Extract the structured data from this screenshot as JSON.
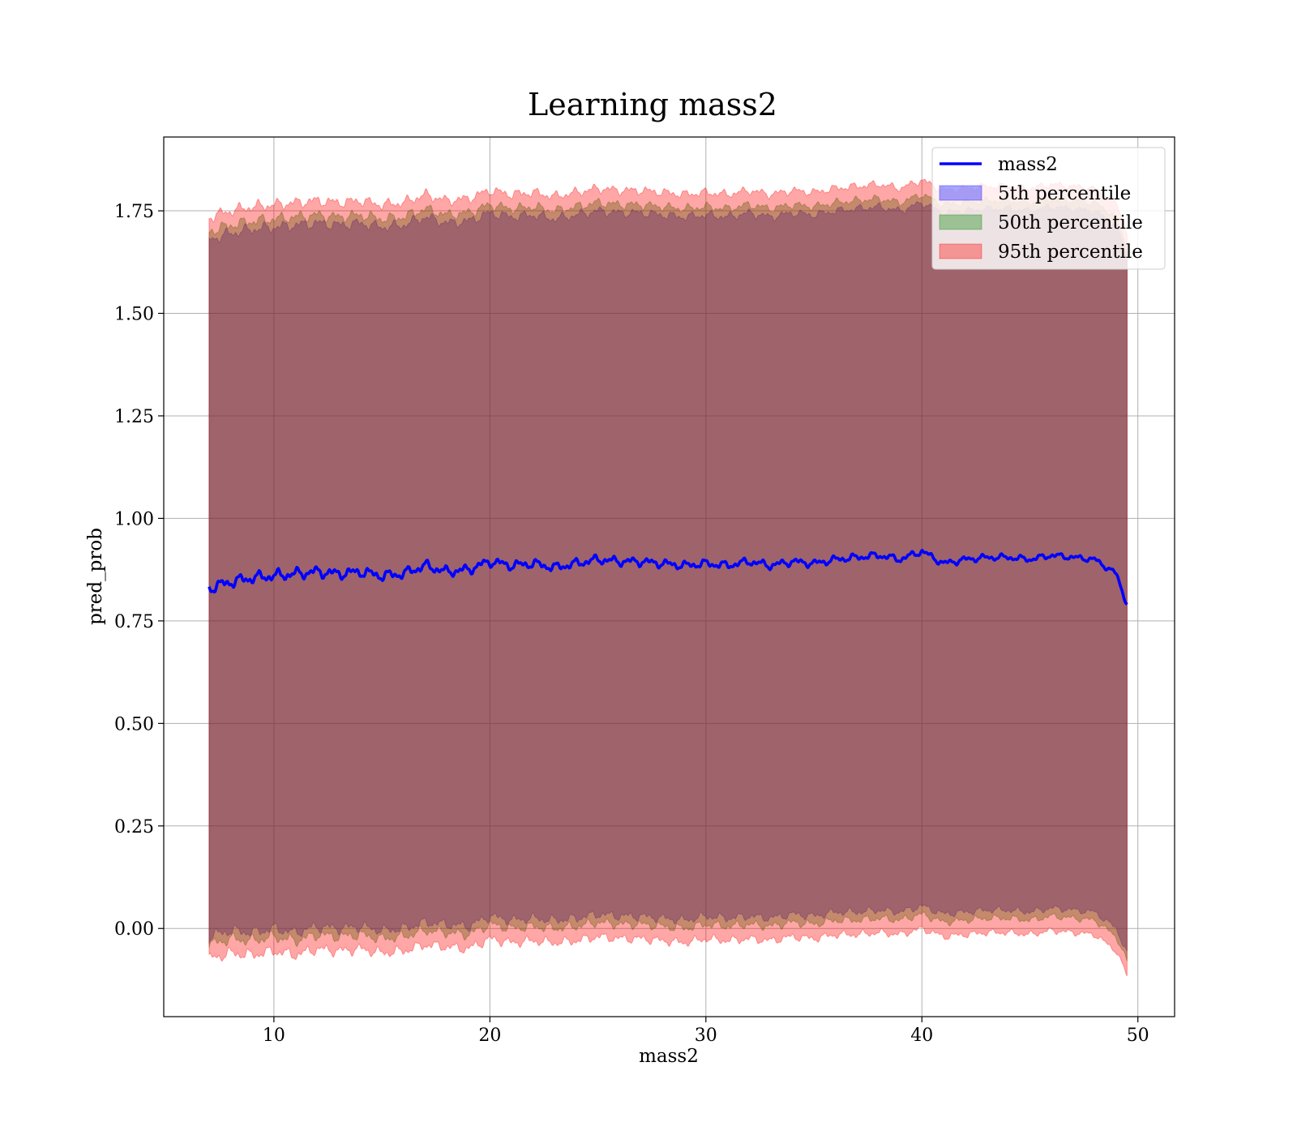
{
  "chart_data": {
    "type": "line",
    "title": "Learning mass2",
    "xlabel": "mass2",
    "ylabel": "pred_prob",
    "xlim": [
      4.9,
      51.7
    ],
    "ylim": [
      -0.215,
      1.93
    ],
    "x_ticks": [
      10,
      20,
      30,
      40,
      50
    ],
    "x_tick_labels": [
      "10",
      "20",
      "30",
      "40",
      "50"
    ],
    "y_ticks": [
      0.0,
      0.25,
      0.5,
      0.75,
      1.0,
      1.25,
      1.5,
      1.75
    ],
    "y_tick_labels": [
      "0.00",
      "0.25",
      "0.50",
      "0.75",
      "1.00",
      "1.25",
      "1.50",
      "1.75"
    ],
    "grid": true,
    "legend_position": "top-right",
    "legend": [
      {
        "label": "mass2",
        "kind": "line",
        "color": "#0000ff"
      },
      {
        "label": "5th percentile",
        "kind": "patch",
        "color": "#0000ff"
      },
      {
        "label": "50th percentile",
        "kind": "patch",
        "color": "#008000"
      },
      {
        "label": "95th percentile",
        "kind": "patch",
        "color": "#ff0000"
      }
    ],
    "x": [
      7.0,
      8.0,
      9.0,
      10.0,
      11.0,
      12.0,
      13.0,
      14.0,
      15.0,
      16.0,
      17.0,
      18.0,
      19.0,
      20.0,
      21.0,
      22.0,
      23.0,
      24.0,
      25.0,
      26.0,
      27.0,
      28.0,
      29.0,
      30.0,
      31.0,
      32.0,
      33.0,
      34.0,
      35.0,
      36.0,
      37.0,
      38.0,
      39.0,
      40.0,
      41.0,
      42.0,
      43.0,
      44.0,
      45.0,
      46.0,
      47.0,
      48.0,
      49.0,
      49.5
    ],
    "series": [
      {
        "name": "mass2",
        "kind": "line",
        "color": "#0000ff",
        "values": [
          0.83,
          0.845,
          0.855,
          0.86,
          0.865,
          0.87,
          0.865,
          0.87,
          0.86,
          0.865,
          0.885,
          0.87,
          0.875,
          0.895,
          0.885,
          0.89,
          0.88,
          0.89,
          0.9,
          0.895,
          0.895,
          0.89,
          0.885,
          0.89,
          0.885,
          0.895,
          0.885,
          0.895,
          0.89,
          0.9,
          0.905,
          0.91,
          0.9,
          0.92,
          0.89,
          0.9,
          0.905,
          0.905,
          0.9,
          0.91,
          0.905,
          0.9,
          0.865,
          0.79
        ]
      },
      {
        "name": "5th percentile",
        "kind": "band",
        "color": "#0000ff",
        "lower": [
          -0.02,
          -0.005,
          -0.01,
          0.0,
          -0.01,
          0.005,
          0.0,
          0.005,
          -0.005,
          0.0,
          0.015,
          0.01,
          0.005,
          0.03,
          0.02,
          0.025,
          0.02,
          0.025,
          0.035,
          0.03,
          0.03,
          0.025,
          0.02,
          0.03,
          0.025,
          0.03,
          0.025,
          0.035,
          0.03,
          0.04,
          0.04,
          0.045,
          0.04,
          0.055,
          0.035,
          0.04,
          0.045,
          0.045,
          0.04,
          0.05,
          0.045,
          0.04,
          0.0,
          -0.06
        ],
        "upper": [
          1.68,
          1.695,
          1.705,
          1.71,
          1.715,
          1.72,
          1.715,
          1.72,
          1.71,
          1.715,
          1.735,
          1.72,
          1.725,
          1.745,
          1.735,
          1.74,
          1.73,
          1.74,
          1.75,
          1.745,
          1.745,
          1.74,
          1.735,
          1.74,
          1.735,
          1.745,
          1.735,
          1.745,
          1.74,
          1.75,
          1.755,
          1.76,
          1.75,
          1.77,
          1.745,
          1.75,
          1.755,
          1.755,
          1.75,
          1.76,
          1.755,
          1.75,
          1.715,
          1.64
        ]
      },
      {
        "name": "50th percentile",
        "kind": "band",
        "color": "#008000",
        "lower": [
          -0.04,
          -0.025,
          -0.03,
          -0.02,
          -0.03,
          -0.015,
          -0.02,
          -0.015,
          -0.025,
          -0.02,
          -0.005,
          -0.01,
          -0.015,
          0.01,
          0.0,
          0.005,
          0.0,
          0.005,
          0.015,
          0.01,
          0.01,
          0.005,
          0.0,
          0.01,
          0.005,
          0.01,
          0.005,
          0.015,
          0.01,
          0.02,
          0.02,
          0.025,
          0.02,
          0.035,
          0.015,
          0.02,
          0.025,
          0.025,
          0.02,
          0.03,
          0.025,
          0.02,
          -0.02,
          -0.08
        ],
        "upper": [
          1.7,
          1.715,
          1.725,
          1.73,
          1.735,
          1.74,
          1.735,
          1.74,
          1.73,
          1.735,
          1.755,
          1.74,
          1.745,
          1.765,
          1.755,
          1.76,
          1.75,
          1.76,
          1.77,
          1.765,
          1.765,
          1.76,
          1.755,
          1.76,
          1.755,
          1.765,
          1.755,
          1.765,
          1.76,
          1.77,
          1.775,
          1.78,
          1.77,
          1.79,
          1.765,
          1.77,
          1.775,
          1.775,
          1.77,
          1.78,
          1.775,
          1.77,
          1.735,
          1.66
        ]
      },
      {
        "name": "95th percentile",
        "kind": "band",
        "color": "#ff0000",
        "lower": [
          -0.075,
          -0.06,
          -0.065,
          -0.055,
          -0.065,
          -0.05,
          -0.055,
          -0.05,
          -0.06,
          -0.055,
          -0.04,
          -0.045,
          -0.05,
          -0.025,
          -0.035,
          -0.03,
          -0.035,
          -0.03,
          -0.02,
          -0.025,
          -0.025,
          -0.03,
          -0.035,
          -0.025,
          -0.03,
          -0.025,
          -0.03,
          -0.02,
          -0.025,
          -0.015,
          -0.015,
          -0.01,
          -0.015,
          0.0,
          -0.02,
          -0.015,
          -0.01,
          -0.01,
          -0.015,
          -0.005,
          -0.01,
          -0.015,
          -0.055,
          -0.115
        ],
        "upper": [
          1.735,
          1.75,
          1.76,
          1.765,
          1.77,
          1.775,
          1.77,
          1.775,
          1.765,
          1.77,
          1.79,
          1.775,
          1.78,
          1.8,
          1.79,
          1.795,
          1.785,
          1.795,
          1.805,
          1.8,
          1.8,
          1.795,
          1.79,
          1.795,
          1.79,
          1.8,
          1.79,
          1.8,
          1.795,
          1.805,
          1.81,
          1.815,
          1.805,
          1.825,
          1.8,
          1.805,
          1.81,
          1.81,
          1.805,
          1.815,
          1.81,
          1.805,
          1.77,
          1.695
        ]
      }
    ]
  }
}
